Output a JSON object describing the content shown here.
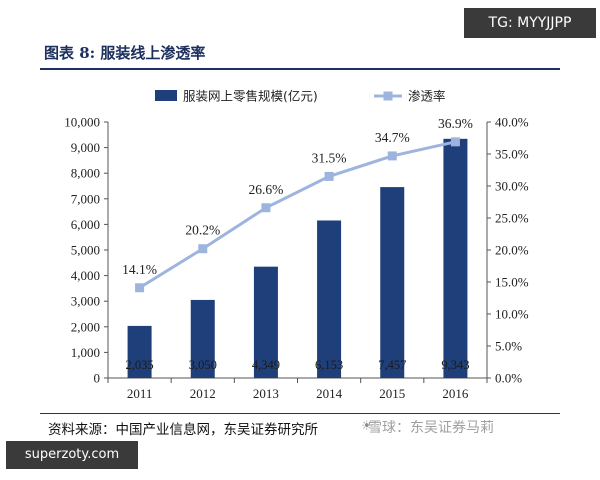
{
  "tags": {
    "top": "TG: MYYJJPP",
    "bottom": "superzoty.com"
  },
  "figure_title": "图表 8: 服装线上渗透率",
  "source": "资料来源：中国产业信息网，东吴证券研究所",
  "watermark": "雪球：东吴证券马莉",
  "watermark_icon": "☀",
  "colors": {
    "bar": "#1f3f7a",
    "line": "#9db5de",
    "title": "#1c2f5e"
  },
  "chart_data": {
    "type": "bar",
    "title": "",
    "categories": [
      "2011",
      "2012",
      "2013",
      "2014",
      "2015",
      "2016"
    ],
    "series": [
      {
        "name": "服装网上零售规模(亿元)",
        "type": "bar",
        "axis": "left",
        "values": [
          2035,
          3050,
          4349,
          6153,
          7457,
          9343
        ],
        "labels": [
          "2,035",
          "3,050",
          "4,349",
          "6,153",
          "7,457",
          "9,343"
        ]
      },
      {
        "name": "渗透率",
        "type": "line",
        "axis": "right",
        "values": [
          14.1,
          20.2,
          26.6,
          31.5,
          34.7,
          36.9
        ],
        "labels": [
          "14.1%",
          "20.2%",
          "26.6%",
          "31.5%",
          "34.7%",
          "36.9%"
        ]
      }
    ],
    "ylim_left": [
      0,
      10000
    ],
    "yticks_left": [
      "0",
      "1,000",
      "2,000",
      "3,000",
      "4,000",
      "5,000",
      "6,000",
      "7,000",
      "8,000",
      "9,000",
      "10,000"
    ],
    "ylim_right": [
      0,
      40
    ],
    "yticks_right": [
      "0.0%",
      "5.0%",
      "10.0%",
      "15.0%",
      "20.0%",
      "25.0%",
      "30.0%",
      "35.0%",
      "40.0%"
    ],
    "grid": false,
    "legend_position": "top"
  }
}
